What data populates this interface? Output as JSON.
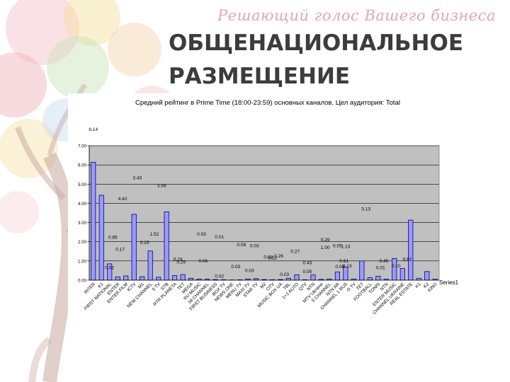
{
  "slide": {
    "tagline": "Решающий голос Вашего бизнеса",
    "title_line1": "ОБЩЕНАЦИОНАЛЬНОЕ",
    "title_line2": "РАЗМЕЩЕНИЕ"
  },
  "chart_data": {
    "type": "bar",
    "title": "Средний рейтинг в Prime Time (18:00-23:59) основных каналов. Цел аудитория: Total",
    "ylim": [
      0,
      7
    ],
    "yticks": [
      "0.00",
      "1.00",
      "2.00",
      "3.00",
      "4.00",
      "5.00",
      "6.00",
      "7.00"
    ],
    "grid": true,
    "legend": "right",
    "bar_color": "#9999ff",
    "categories": [
      "INTER",
      "K1",
      "FIRST NATIONAL",
      "ENTER",
      "ENTER FILM",
      "ICTV",
      "M1",
      "NEW CHANNEL",
      "5 TV",
      "STB",
      "RTR PLANETA",
      "TET",
      "MEGA",
      "RU MUSIC",
      "34 CHANNEL",
      "FIRST BUSINESS",
      "BOX TV",
      "NEWS ONE",
      "MENU TV",
      "MAXI TV",
      "STAR TV",
      "M2",
      "OTV",
      "MUSIC BOX UA",
      "TBL",
      "1+1 AUTO",
      "QTV",
      "NTN",
      "MTV Ukraine",
      "5 CHANNEL",
      "NTN AR",
      "CHANNEL 1 RUS",
      "O TV",
      "TET",
      "FOOTBALL",
      "TONIS",
      "NTN",
      "ENTER MUSIC",
      "CHANNEL UKRAINE",
      "REAL ESTATE",
      "K1",
      "K2",
      "KINO"
    ],
    "series": [
      {
        "name": "Series1",
        "values": [
          6.14,
          4.42,
          0.85,
          0.17,
          0.22,
          3.43,
          0.18,
          1.52,
          0.15,
          3.56,
          0.24,
          0.29,
          0.1,
          0.06,
          0.05,
          0.03,
          0.02,
          0.01,
          0.02,
          0.06,
          0.08,
          0.03,
          0.02,
          0.03,
          0.1,
          0.28,
          0.02,
          0.27,
          0.04,
          0.06,
          0.43,
          0.68,
          0.06,
          1.0,
          0.13,
          0.2,
          0.05,
          1.13,
          0.61,
          3.13,
          0.1,
          0.45,
          0.05
        ]
      }
    ],
    "data_labels": [
      {
        "text": "6.14",
        "x": 0,
        "y": 7.78
      },
      {
        "text": "4.42",
        "x": 3.6,
        "y": 4.17
      },
      {
        "text": "3.43",
        "x": 5.4,
        "y": 5.25
      },
      {
        "text": "3.56",
        "x": 8.4,
        "y": 4.85
      },
      {
        "text": "0.85",
        "x": 2.4,
        "y": 2.15
      },
      {
        "text": "1.52",
        "x": 7.5,
        "y": 2.32
      },
      {
        "text": "0.17",
        "x": 3.3,
        "y": 1.52
      },
      {
        "text": "0.15",
        "x": 6.3,
        "y": 1.87
      },
      {
        "text": "0.02",
        "x": 2.0,
        "y": 0.57
      },
      {
        "text": "0.03",
        "x": 13.3,
        "y": 2.32
      },
      {
        "text": "0.01",
        "x": 15.5,
        "y": 2.17
      },
      {
        "text": "0.24",
        "x": 10.4,
        "y": 1.02
      },
      {
        "text": "0.29",
        "x": 10.8,
        "y": 0.87
      },
      {
        "text": "0.06",
        "x": 13.5,
        "y": 0.92
      },
      {
        "text": "0.08",
        "x": 18.2,
        "y": 1.77
      },
      {
        "text": "0.03",
        "x": 19.8,
        "y": 1.72
      },
      {
        "text": "0.08",
        "x": 21.5,
        "y": 1.12
      },
      {
        "text": "0.02",
        "x": 22.0,
        "y": 1.07
      },
      {
        "text": "0.26",
        "x": 22.8,
        "y": 1.17
      },
      {
        "text": "0.27",
        "x": 24.8,
        "y": 1.42
      },
      {
        "text": "0.03",
        "x": 17.5,
        "y": 0.62
      },
      {
        "text": "0.03",
        "x": 19.2,
        "y": 0.42
      },
      {
        "text": "0.02",
        "x": 15.5,
        "y": 0.12
      },
      {
        "text": "0.43",
        "x": 26.3,
        "y": 0.82
      },
      {
        "text": "0.05",
        "x": 26.3,
        "y": 0.37
      },
      {
        "text": "0.03",
        "x": 23.5,
        "y": 0.22
      },
      {
        "text": "0.29",
        "x": 28.5,
        "y": 2.02
      },
      {
        "text": "1.00",
        "x": 28.5,
        "y": 1.62
      },
      {
        "text": "0.05",
        "x": 30.0,
        "y": 1.72
      },
      {
        "text": "1.13",
        "x": 31.0,
        "y": 1.67
      },
      {
        "text": "3.13",
        "x": 33.5,
        "y": 3.62
      },
      {
        "text": "0.61",
        "x": 30.8,
        "y": 0.92
      },
      {
        "text": "0.13",
        "x": 31.2,
        "y": 0.67
      },
      {
        "text": "0.08",
        "x": 30.3,
        "y": 0.62
      },
      {
        "text": "0.45",
        "x": 35.7,
        "y": 0.92
      },
      {
        "text": "0.61",
        "x": 38.6,
        "y": 1.02
      },
      {
        "text": "0.10",
        "x": 37.2,
        "y": 0.67
      },
      {
        "text": "0.01",
        "x": 35.3,
        "y": 0.57
      }
    ]
  }
}
